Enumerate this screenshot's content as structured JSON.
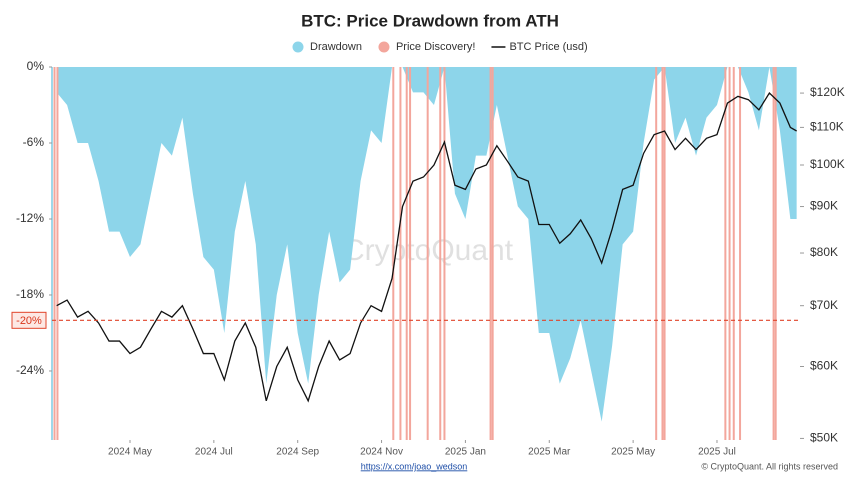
{
  "chart_data": {
    "type": "area",
    "title": "BTC: Price Drawdown from ATH",
    "watermark": "CryptoQuant",
    "source": "https://x.com/joao_wedson",
    "credit": "© CryptoQuant. All rights reserved",
    "legend": "top",
    "x": [
      2.25,
      2.5,
      2.75,
      3.0,
      3.25,
      3.5,
      3.75,
      4.0,
      4.25,
      4.5,
      4.75,
      5.0,
      5.25,
      5.5,
      5.75,
      6.0,
      6.25,
      6.5,
      6.75,
      7.0,
      7.25,
      7.5,
      7.75,
      8.0,
      8.25,
      8.5,
      8.75,
      9.0,
      9.25,
      9.5,
      9.75,
      10.0,
      10.25,
      10.5,
      10.75,
      11.0,
      11.25,
      11.5,
      11.75,
      12.0,
      12.25,
      12.5,
      12.75,
      13.0,
      13.25,
      13.5,
      13.75,
      14.0,
      14.25,
      14.5,
      14.75,
      15.0,
      15.25,
      15.5,
      15.75,
      16.0,
      16.25,
      16.5,
      16.75,
      17.0,
      17.25,
      17.5,
      17.75,
      18.0,
      18.25,
      18.5,
      18.75,
      19.0,
      19.25,
      19.5,
      19.75,
      19.9
    ],
    "xlim": [
      2.14,
      19.98
    ],
    "xticks": [
      {
        "value": 4,
        "label": "2024 May"
      },
      {
        "value": 6,
        "label": "2024 Jul"
      },
      {
        "value": 8,
        "label": "2024 Sep"
      },
      {
        "value": 10,
        "label": "2024 Nov"
      },
      {
        "value": 12,
        "label": "2025 Jan"
      },
      {
        "value": 14,
        "label": "2025 Mar"
      },
      {
        "value": 16,
        "label": "2025 May"
      },
      {
        "value": 18,
        "label": "2025 Jul"
      }
    ],
    "ylim": [
      -29.45,
      0
    ],
    "yticks": [
      {
        "value": 0,
        "label": "0%"
      },
      {
        "value": -6,
        "label": "-6%"
      },
      {
        "value": -12,
        "label": "-12%"
      },
      {
        "value": -18,
        "label": "-18%"
      },
      {
        "value": -24,
        "label": "-24%"
      }
    ],
    "y2scale": "log",
    "y2lim": [
      49800,
      128200
    ],
    "y2ticks": [
      {
        "value": 120000,
        "label": "$120K"
      },
      {
        "value": 110000,
        "label": "$110K"
      },
      {
        "value": 100000,
        "label": "$100K"
      },
      {
        "value": 90000,
        "label": "$90K"
      },
      {
        "value": 80000,
        "label": "$80K"
      },
      {
        "value": 70000,
        "label": "$70K"
      },
      {
        "value": 60000,
        "label": "$60K"
      },
      {
        "value": 50000,
        "label": "$50K"
      }
    ],
    "reference_line": {
      "value": -20,
      "label": "-20%",
      "color": "#e0442a"
    },
    "series": [
      {
        "name": "Drawdown",
        "type": "area",
        "color": "#8dd5ea",
        "values": [
          -2,
          -3,
          -6,
          -6,
          -9,
          -13,
          -13,
          -15,
          -14,
          -10,
          -6,
          -7,
          -4,
          -10,
          -15,
          -16,
          -21,
          -13,
          -9,
          -14,
          -25,
          -18,
          -14,
          -21,
          -25,
          -18,
          -13,
          -17,
          -16,
          -9,
          -5,
          -6,
          0,
          0,
          -2,
          -2,
          -3,
          0,
          -10,
          -12,
          -7,
          -7,
          -3,
          -7,
          -11,
          -12,
          -21,
          -21,
          -25,
          -23,
          -20,
          -24,
          -28,
          -22,
          -14,
          -13,
          -6,
          -1,
          0,
          -6,
          -4,
          -7,
          -4,
          -3,
          0,
          0,
          -2,
          -5,
          0,
          -5,
          -12,
          -12
        ]
      },
      {
        "name": "Price Discovery!",
        "type": "vline",
        "color": "#f3a69c",
        "x": [
          2.2,
          2.27,
          10.28,
          10.45,
          10.6,
          10.68,
          11.1,
          11.4,
          11.5,
          12.6,
          12.65,
          16.55,
          16.7,
          16.75,
          18.2,
          18.3,
          18.4,
          18.55,
          19.35,
          19.4
        ]
      },
      {
        "name": "BTC Price (usd)",
        "type": "line",
        "color": "#111111",
        "axis": "y2",
        "values": [
          70000,
          71000,
          68000,
          69000,
          67000,
          64000,
          64000,
          62000,
          63000,
          66000,
          69000,
          68000,
          70000,
          66000,
          62000,
          62000,
          58000,
          64000,
          67000,
          63000,
          55000,
          60000,
          63000,
          58000,
          55000,
          60000,
          64000,
          61000,
          62000,
          67000,
          70000,
          69000,
          75000,
          90000,
          96000,
          97000,
          100000,
          106000,
          95000,
          94000,
          99000,
          100000,
          105000,
          101000,
          97000,
          96000,
          86000,
          86000,
          82000,
          84000,
          87000,
          83000,
          78000,
          85000,
          94000,
          95000,
          103000,
          108000,
          109000,
          104000,
          107000,
          104000,
          107000,
          108000,
          117000,
          119000,
          118000,
          115000,
          120000,
          117000,
          110000,
          109000
        ]
      }
    ]
  }
}
